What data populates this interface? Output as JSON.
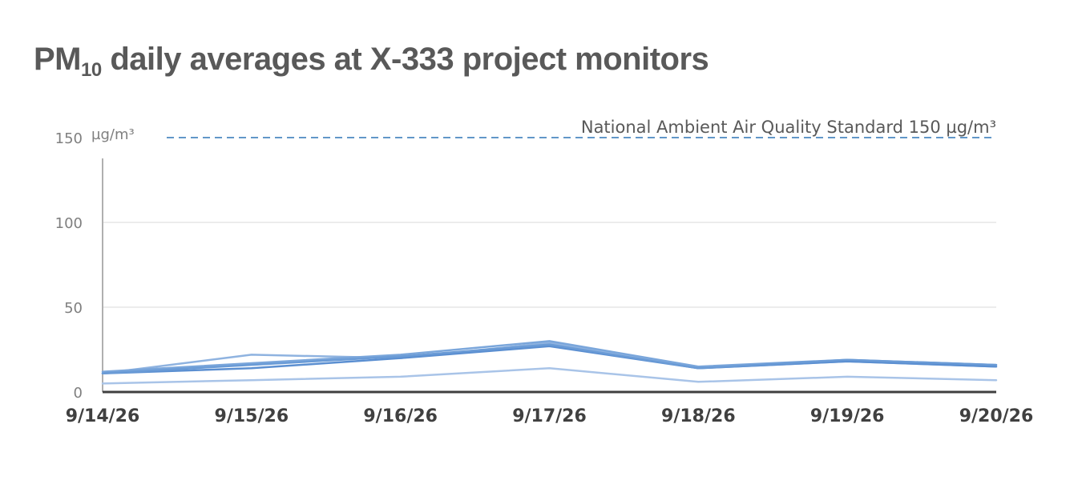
{
  "title": {
    "prefix": "PM",
    "subscript": "10",
    "suffix": " daily averages at X-333 project monitors"
  },
  "chart_data": {
    "type": "line",
    "title": "PM10 daily averages at X-333 project monitors",
    "x": [
      "9/14/26",
      "9/15/26",
      "9/16/26",
      "9/17/26",
      "9/18/26",
      "9/19/26",
      "9/20/26"
    ],
    "ylim": [
      0,
      150
    ],
    "yticks": [
      0,
      50,
      100,
      150
    ],
    "yunit": "µg/m³",
    "grid": true,
    "reference_line": {
      "value": 150,
      "label": "National Ambient Air Quality Standard 150 µg/m³",
      "color": "#2e75b6"
    },
    "series": [
      {
        "values": [
          11,
          22,
          20,
          29,
          14,
          18,
          15
        ],
        "color": "#8fb3e0"
      },
      {
        "values": [
          12,
          17,
          22,
          30,
          15,
          19,
          16
        ],
        "color": "#7aa6db"
      },
      {
        "values": [
          11,
          14,
          20,
          27,
          14,
          18,
          15
        ],
        "color": "#5b8fd1"
      },
      {
        "values": [
          11,
          16,
          21,
          28,
          14,
          19,
          16
        ],
        "color": "#6a9bd6"
      },
      {
        "values": [
          5,
          7,
          9,
          14,
          6,
          9,
          7
        ],
        "color": "#a9c4e8"
      }
    ]
  }
}
